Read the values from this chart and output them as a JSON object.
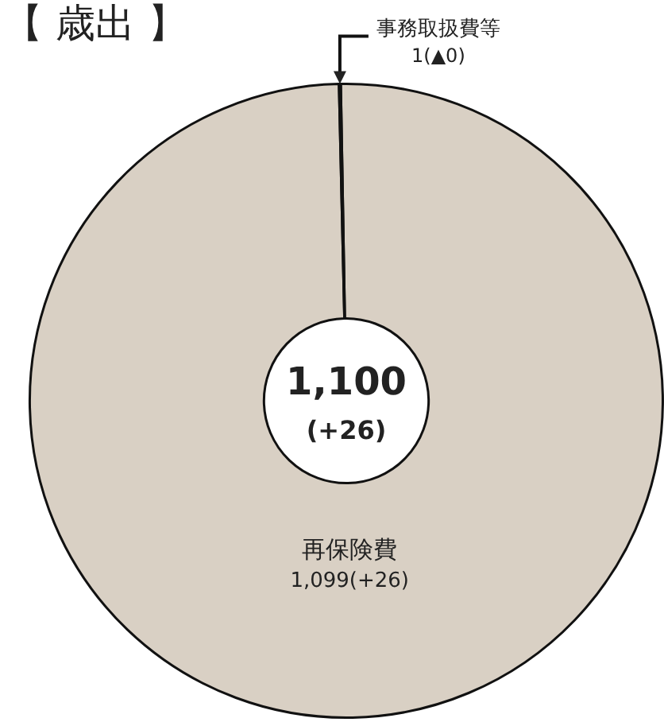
{
  "chart_data": {
    "type": "donut",
    "title": "【 歳出 】",
    "categories": [
      "再保険費",
      "事務取扱費等"
    ],
    "values": [
      1099,
      1
    ],
    "value_labels": [
      "1,099(+26)",
      "1(▲0)"
    ],
    "colors": [
      "#d9d0c4",
      "#d9d0c4"
    ],
    "annotations": [
      "1,100",
      "(+26)"
    ],
    "legend": false
  }
}
